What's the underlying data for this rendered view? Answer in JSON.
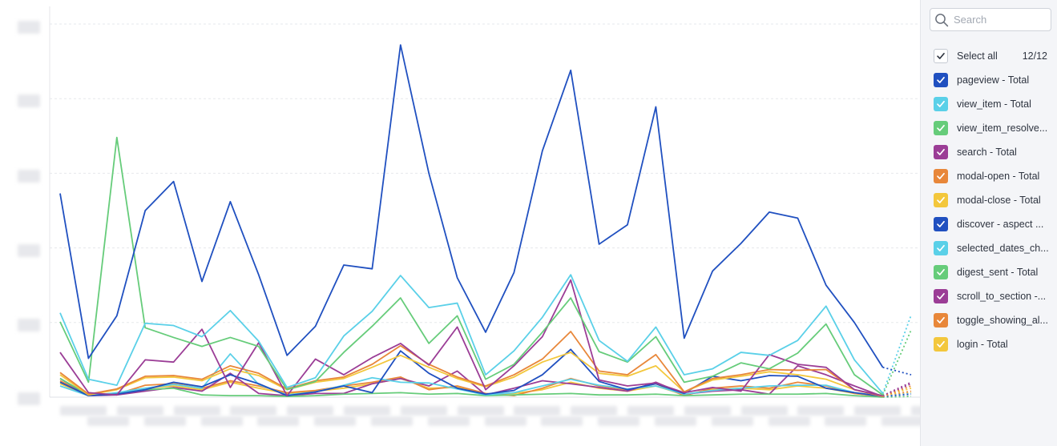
{
  "search": {
    "placeholder": "Search"
  },
  "legend": {
    "select_all_label": "Select all",
    "selected_count": "12/12",
    "items": [
      {
        "label": "pageview - Total",
        "color": "#2050c0",
        "checked": true
      },
      {
        "label": "view_item - Total",
        "color": "#5ad0e8",
        "checked": true
      },
      {
        "label": "view_item_resolve...",
        "color": "#66cc7a",
        "checked": true
      },
      {
        "label": "search - Total",
        "color": "#9b3d96",
        "checked": true
      },
      {
        "label": "modal-open - Total",
        "color": "#e8873a",
        "checked": true
      },
      {
        "label": "modal-close - Total",
        "color": "#f3c73c",
        "checked": true
      },
      {
        "label": "discover - aspect ...",
        "color": "#2050c0",
        "checked": true
      },
      {
        "label": "selected_dates_ch...",
        "color": "#5ad0e8",
        "checked": true
      },
      {
        "label": "digest_sent - Total",
        "color": "#66cc7a",
        "checked": true
      },
      {
        "label": "scroll_to_section -...",
        "color": "#9b3d96",
        "checked": true
      },
      {
        "label": "toggle_showing_al...",
        "color": "#e8873a",
        "checked": true
      },
      {
        "label": "login - Total",
        "color": "#f3c73c",
        "checked": true
      }
    ]
  },
  "chart_data": {
    "type": "line",
    "grid": true,
    "ylim": [
      0,
      5
    ],
    "y_gridlines": [
      1,
      2,
      3,
      4,
      5
    ],
    "n_points": 31,
    "dotted_tail_from_index": 29,
    "series": [
      {
        "name": "pageview - Total",
        "color": "#2050c0",
        "values": [
          2.73,
          0.52,
          1.09,
          2.5,
          2.89,
          1.55,
          2.62,
          1.64,
          0.56,
          0.95,
          1.77,
          1.72,
          4.72,
          3.0,
          1.6,
          0.87,
          1.67,
          3.3,
          4.38,
          2.05,
          2.31,
          3.89,
          0.79,
          1.69,
          2.06,
          2.48,
          2.4,
          1.5,
          1.0,
          0.4,
          0.3
        ]
      },
      {
        "name": "view_item - Total",
        "color": "#5ad0e8",
        "values": [
          1.13,
          0.24,
          0.16,
          0.99,
          0.96,
          0.81,
          1.16,
          0.75,
          0.13,
          0.26,
          0.82,
          1.15,
          1.63,
          1.2,
          1.26,
          0.3,
          0.62,
          1.07,
          1.64,
          0.76,
          0.48,
          0.94,
          0.3,
          0.38,
          0.6,
          0.56,
          0.76,
          1.22,
          0.5,
          0.05,
          1.1
        ]
      },
      {
        "name": "view_item_resolve...",
        "color": "#66cc7a",
        "values": [
          1.01,
          0.2,
          3.48,
          0.93,
          0.8,
          0.68,
          0.8,
          0.68,
          0.1,
          0.21,
          0.6,
          0.95,
          1.33,
          0.72,
          1.09,
          0.24,
          0.44,
          0.87,
          1.33,
          0.61,
          0.47,
          0.81,
          0.2,
          0.28,
          0.46,
          0.38,
          0.59,
          0.98,
          0.3,
          0.03,
          0.9
        ]
      },
      {
        "name": "search - Total",
        "color": "#9b3d96",
        "values": [
          0.6,
          0.06,
          0.03,
          0.5,
          0.47,
          0.91,
          0.13,
          0.73,
          0.02,
          0.51,
          0.3,
          0.53,
          0.72,
          0.43,
          0.94,
          0.1,
          0.42,
          0.81,
          1.57,
          0.23,
          0.15,
          0.19,
          0.06,
          0.13,
          0.08,
          0.57,
          0.44,
          0.4,
          0.1,
          0.02,
          0.2
        ]
      },
      {
        "name": "modal-open - Total",
        "color": "#e8873a",
        "values": [
          0.33,
          0.04,
          0.11,
          0.28,
          0.29,
          0.24,
          0.42,
          0.32,
          0.11,
          0.22,
          0.27,
          0.44,
          0.69,
          0.44,
          0.27,
          0.15,
          0.3,
          0.51,
          0.88,
          0.35,
          0.3,
          0.57,
          0.07,
          0.25,
          0.3,
          0.37,
          0.36,
          0.37,
          0.1,
          0.01,
          0.15
        ]
      },
      {
        "name": "modal-close - Total",
        "color": "#f3c73c",
        "values": [
          0.3,
          0.03,
          0.1,
          0.26,
          0.27,
          0.22,
          0.38,
          0.29,
          0.1,
          0.2,
          0.25,
          0.4,
          0.56,
          0.4,
          0.25,
          0.14,
          0.27,
          0.47,
          0.6,
          0.32,
          0.28,
          0.42,
          0.07,
          0.23,
          0.28,
          0.34,
          0.3,
          0.24,
          0.1,
          0.01,
          0.12
        ]
      },
      {
        "name": "discover - aspect ...",
        "color": "#2050c0",
        "values": [
          0.2,
          0.02,
          0.04,
          0.1,
          0.2,
          0.14,
          0.3,
          0.18,
          0.02,
          0.07,
          0.15,
          0.06,
          0.62,
          0.32,
          0.12,
          0.04,
          0.09,
          0.3,
          0.64,
          0.21,
          0.1,
          0.18,
          0.05,
          0.28,
          0.22,
          0.29,
          0.28,
          0.12,
          0.06,
          0.01,
          0.04
        ]
      },
      {
        "name": "selected_dates_ch...",
        "color": "#5ad0e8",
        "values": [
          0.15,
          0.02,
          0.06,
          0.12,
          0.17,
          0.12,
          0.58,
          0.17,
          0.03,
          0.07,
          0.16,
          0.26,
          0.2,
          0.19,
          0.11,
          0.03,
          0.06,
          0.15,
          0.24,
          0.16,
          0.11,
          0.15,
          0.04,
          0.09,
          0.12,
          0.15,
          0.16,
          0.16,
          0.06,
          0.01,
          0.05
        ]
      },
      {
        "name": "digest_sent - Total",
        "color": "#66cc7a",
        "values": [
          0.25,
          0.03,
          0.05,
          0.1,
          0.12,
          0.03,
          0.02,
          0.02,
          0.01,
          0.02,
          0.04,
          0.05,
          0.06,
          0.04,
          0.05,
          0.02,
          0.03,
          0.04,
          0.05,
          0.03,
          0.03,
          0.04,
          0.02,
          0.03,
          0.04,
          0.04,
          0.04,
          0.05,
          0.02,
          0.0,
          0.01
        ]
      },
      {
        "name": "scroll_to_section -...",
        "color": "#9b3d96",
        "values": [
          0.25,
          0.02,
          0.03,
          0.08,
          0.13,
          0.08,
          0.32,
          0.05,
          0.02,
          0.05,
          0.05,
          0.18,
          0.25,
          0.15,
          0.35,
          0.03,
          0.12,
          0.22,
          0.18,
          0.13,
          0.08,
          0.2,
          0.04,
          0.08,
          0.1,
          0.04,
          0.42,
          0.3,
          0.15,
          0.01,
          0.18
        ]
      },
      {
        "name": "toggle_showing_al...",
        "color": "#e8873a",
        "values": [
          0.22,
          0.02,
          0.04,
          0.16,
          0.18,
          0.12,
          0.22,
          0.15,
          0.06,
          0.09,
          0.15,
          0.2,
          0.27,
          0.1,
          0.15,
          0.05,
          0.02,
          0.12,
          0.25,
          0.15,
          0.1,
          0.18,
          0.02,
          0.12,
          0.15,
          0.12,
          0.2,
          0.15,
          0.05,
          0.01,
          0.08
        ]
      },
      {
        "name": "login - Total",
        "color": "#f3c73c",
        "values": [
          0.18,
          0.02,
          0.05,
          0.12,
          0.15,
          0.1,
          0.2,
          0.12,
          0.05,
          0.08,
          0.12,
          0.18,
          0.25,
          0.12,
          0.13,
          0.04,
          0.05,
          0.1,
          0.2,
          0.12,
          0.08,
          0.15,
          0.03,
          0.1,
          0.12,
          0.1,
          0.15,
          0.12,
          0.05,
          0.01,
          0.06
        ]
      }
    ]
  }
}
